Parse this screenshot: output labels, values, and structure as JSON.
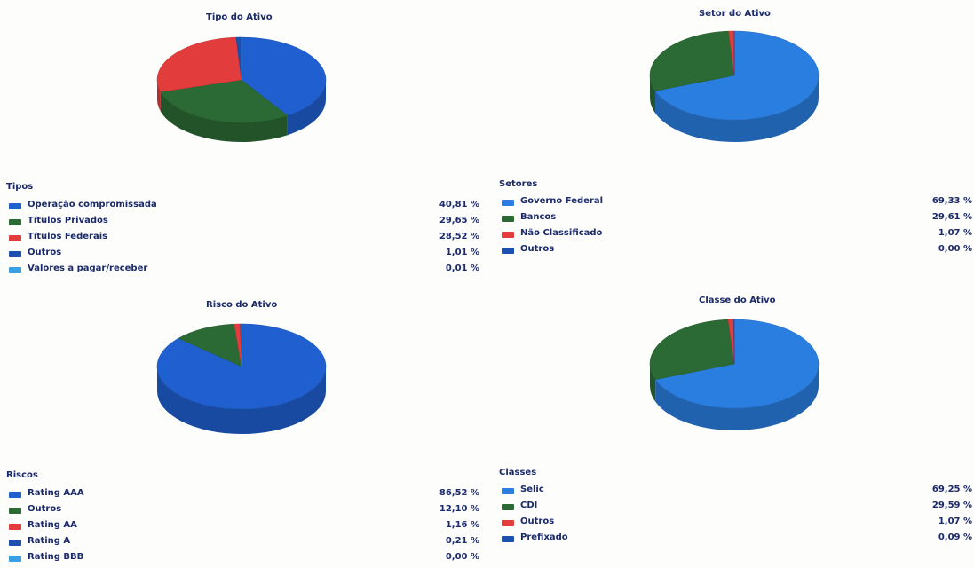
{
  "colors": {
    "blue": "#1f5fd0",
    "green": "#2c6a35",
    "red": "#e23c3c",
    "navy": "#1b4fb0",
    "light_blue": "#3aa0e6"
  },
  "chart_data": [
    {
      "type": "pie",
      "title": "Tipo do Ativo",
      "legend_title": "Tipos",
      "categories": [
        "Operação compromissada",
        "Títulos Privados",
        "Títulos Federais",
        "Outros",
        "Valores a pagar/receber"
      ],
      "values": [
        40.81,
        29.65,
        28.52,
        1.01,
        0.01
      ],
      "value_labels": [
        "40,81 %",
        "29,65 %",
        "28,52 %",
        "1,01 %",
        "0,01 %"
      ],
      "colors": [
        "#1f5fd0",
        "#2c6a35",
        "#e23c3c",
        "#1b4fb0",
        "#3aa0e6"
      ]
    },
    {
      "type": "pie",
      "title": "Setor do Ativo",
      "legend_title": "Setores",
      "categories": [
        "Governo Federal",
        "Bancos",
        "Não Classificado",
        "Outros"
      ],
      "values": [
        69.33,
        29.61,
        1.07,
        0.0
      ],
      "value_labels": [
        "69,33 %",
        "29,61 %",
        "1,07 %",
        "0,00 %"
      ],
      "colors": [
        "#2a7ee0",
        "#2c6a35",
        "#e23c3c",
        "#1b4fb0"
      ]
    },
    {
      "type": "pie",
      "title": "Risco do Ativo",
      "legend_title": "Riscos",
      "categories": [
        "Rating AAA",
        "Outros",
        "Rating AA",
        "Rating A",
        "Rating BBB"
      ],
      "values": [
        86.52,
        12.1,
        1.16,
        0.21,
        0.0
      ],
      "value_labels": [
        "86,52 %",
        "12,10 %",
        "1,16 %",
        "0,21 %",
        "0,00 %"
      ],
      "colors": [
        "#1f5fd0",
        "#2c6a35",
        "#e23c3c",
        "#1b4fb0",
        "#3aa0e6"
      ]
    },
    {
      "type": "pie",
      "title": "Classe do Ativo",
      "legend_title": "Classes",
      "categories": [
        "Selic",
        "CDI",
        "Outros",
        "Prefixado"
      ],
      "values": [
        69.25,
        29.59,
        1.07,
        0.09
      ],
      "value_labels": [
        "69,25 %",
        "29,59 %",
        "1,07 %",
        "0,09 %"
      ],
      "colors": [
        "#2a7ee0",
        "#2c6a35",
        "#e23c3c",
        "#1b4fb0"
      ]
    }
  ]
}
